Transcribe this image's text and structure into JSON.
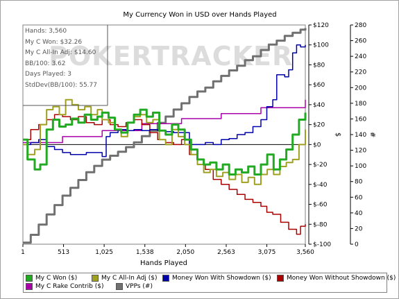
{
  "chart_data": {
    "type": "line",
    "title": "My Currency Won in USD over Hands Played",
    "xlabel": "Hands Played",
    "ylabel_left": "$",
    "ylabel_right": "#",
    "xlim": [
      1,
      3560
    ],
    "ylim_left": [
      -100,
      120
    ],
    "ylim_right": [
      0,
      280
    ],
    "x_ticks": [
      {
        "v": 1,
        "label": "1"
      },
      {
        "v": 513,
        "label": "513"
      },
      {
        "v": 1025,
        "label": "1,025"
      },
      {
        "v": 1538,
        "label": "1,538"
      },
      {
        "v": 2050,
        "label": "2,050"
      },
      {
        "v": 2563,
        "label": "2,563"
      },
      {
        "v": 3075,
        "label": "3,075"
      },
      {
        "v": 3560,
        "label": "3,560"
      }
    ],
    "y_ticks_left": [
      {
        "v": 120,
        "label": "$120"
      },
      {
        "v": 100,
        "label": "$100"
      },
      {
        "v": 80,
        "label": "$80"
      },
      {
        "v": 60,
        "label": "$60"
      },
      {
        "v": 40,
        "label": "$40"
      },
      {
        "v": 20,
        "label": "$20"
      },
      {
        "v": 0,
        "label": "$0"
      },
      {
        "v": -20,
        "label": "$-20"
      },
      {
        "v": -40,
        "label": "$-40"
      },
      {
        "v": -60,
        "label": "$-60"
      },
      {
        "v": -80,
        "label": "$-80"
      },
      {
        "v": -100,
        "label": "$-100"
      }
    ],
    "y_ticks_right": [
      {
        "v": 280,
        "label": "280"
      },
      {
        "v": 260,
        "label": "260"
      },
      {
        "v": 240,
        "label": "240"
      },
      {
        "v": 220,
        "label": "220"
      },
      {
        "v": 200,
        "label": "200"
      },
      {
        "v": 180,
        "label": "180"
      },
      {
        "v": 160,
        "label": "160"
      },
      {
        "v": 140,
        "label": "140"
      },
      {
        "v": 120,
        "label": "120"
      },
      {
        "v": 100,
        "label": "100"
      },
      {
        "v": 80,
        "label": "80"
      },
      {
        "v": 60,
        "label": "60"
      },
      {
        "v": 40,
        "label": "40"
      },
      {
        "v": 20,
        "label": "20"
      },
      {
        "v": 0,
        "label": "0"
      }
    ],
    "series": [
      {
        "name": "My C Won ($)",
        "color": "#22aa22",
        "axis": "left",
        "width": 3,
        "x": [
          1,
          60,
          150,
          220,
          300,
          380,
          460,
          540,
          620,
          700,
          780,
          860,
          940,
          1000,
          1080,
          1160,
          1240,
          1320,
          1400,
          1480,
          1560,
          1640,
          1720,
          1800,
          1880,
          1960,
          2040,
          2120,
          2200,
          2280,
          2360,
          2440,
          2520,
          2600,
          2680,
          2760,
          2840,
          2920,
          3000,
          3080,
          3160,
          3240,
          3320,
          3400,
          3480,
          3560
        ],
        "y": [
          5,
          -15,
          -25,
          -20,
          15,
          25,
          18,
          20,
          26,
          22,
          30,
          25,
          28,
          32,
          27,
          15,
          12,
          22,
          30,
          35,
          28,
          32,
          14,
          10,
          20,
          15,
          5,
          -5,
          -15,
          -20,
          -18,
          -25,
          -20,
          -30,
          -25,
          -28,
          -22,
          -30,
          -20,
          -10,
          -25,
          -15,
          -5,
          10,
          25,
          32
        ]
      },
      {
        "name": "My C All-In Adj ($)",
        "color": "#a0a020",
        "axis": "left",
        "width": 2,
        "x": [
          1,
          60,
          150,
          220,
          300,
          380,
          460,
          540,
          620,
          700,
          780,
          860,
          940,
          1000,
          1080,
          1160,
          1240,
          1320,
          1400,
          1480,
          1560,
          1640,
          1720,
          1800,
          1880,
          1960,
          2040,
          2120,
          2200,
          2280,
          2360,
          2440,
          2520,
          2600,
          2680,
          2760,
          2840,
          2920,
          3000,
          3080,
          3160,
          3240,
          3320,
          3400,
          3480,
          3560
        ],
        "y": [
          0,
          -10,
          -5,
          20,
          35,
          38,
          30,
          45,
          40,
          35,
          38,
          30,
          35,
          25,
          22,
          15,
          8,
          22,
          28,
          30,
          22,
          25,
          5,
          0,
          15,
          8,
          0,
          -10,
          -20,
          -28,
          -25,
          -32,
          -28,
          -35,
          -30,
          -38,
          -33,
          -40,
          -30,
          -25,
          -30,
          -22,
          -18,
          -15,
          0,
          15
        ]
      },
      {
        "name": "Money Won With Showdown ($)",
        "color": "#0000aa",
        "axis": "left",
        "width": 1.5,
        "x": [
          1,
          100,
          200,
          300,
          400,
          500,
          600,
          700,
          800,
          900,
          1000,
          1050,
          1100,
          1200,
          1300,
          1400,
          1500,
          1600,
          1700,
          1800,
          1900,
          2000,
          2100,
          2200,
          2300,
          2400,
          2500,
          2600,
          2700,
          2800,
          2900,
          3000,
          3075,
          3150,
          3200,
          3300,
          3350,
          3400,
          3450,
          3500,
          3560
        ],
        "y": [
          0,
          2,
          5,
          -2,
          -5,
          -8,
          -10,
          -10,
          -8,
          -8,
          -12,
          8,
          12,
          15,
          14,
          15,
          14,
          15,
          14,
          13,
          12,
          12,
          0,
          0,
          2,
          0,
          5,
          6,
          10,
          12,
          18,
          25,
          38,
          45,
          70,
          68,
          75,
          92,
          100,
          98,
          100
        ]
      },
      {
        "name": "Money Won Without Showdown ($)",
        "color": "#aa0000",
        "axis": "left",
        "width": 1.5,
        "x": [
          1,
          100,
          200,
          300,
          400,
          500,
          600,
          700,
          800,
          900,
          1000,
          1100,
          1200,
          1300,
          1400,
          1500,
          1600,
          1700,
          1800,
          1900,
          2000,
          2100,
          2200,
          2300,
          2400,
          2500,
          2600,
          2700,
          2800,
          2900,
          3000,
          3075,
          3150,
          3250,
          3350,
          3450,
          3500,
          3560
        ],
        "y": [
          5,
          15,
          20,
          25,
          30,
          28,
          25,
          28,
          22,
          20,
          25,
          20,
          18,
          22,
          25,
          20,
          12,
          5,
          2,
          0,
          5,
          -10,
          -20,
          -25,
          -35,
          -40,
          -45,
          -50,
          -55,
          -58,
          -62,
          -68,
          -70,
          -78,
          -85,
          -90,
          -82,
          -80
        ]
      },
      {
        "name": "My C Rake Contrib ($)",
        "color": "#aa00aa",
        "axis": "left",
        "width": 1.5,
        "x": [
          1,
          500,
          1000,
          1500,
          2000,
          2500,
          3000,
          3560
        ],
        "y": [
          2,
          8,
          14,
          21,
          26,
          31,
          37,
          45
        ]
      },
      {
        "name": "VPPs (#)",
        "color": "#707070",
        "axis": "right",
        "width": 3,
        "x": [
          1,
          100,
          200,
          300,
          400,
          500,
          600,
          700,
          800,
          900,
          1000,
          1100,
          1200,
          1300,
          1400,
          1500,
          1600,
          1700,
          1800,
          1900,
          2000,
          2100,
          2200,
          2300,
          2400,
          2500,
          2600,
          2700,
          2800,
          2900,
          3000,
          3100,
          3200,
          3300,
          3400,
          3500,
          3560
        ],
        "y": [
          2,
          12,
          25,
          38,
          50,
          62,
          72,
          82,
          92,
          100,
          108,
          113,
          118,
          124,
          130,
          138,
          145,
          155,
          163,
          172,
          180,
          188,
          195,
          200,
          208,
          215,
          222,
          228,
          235,
          240,
          248,
          255,
          260,
          266,
          270,
          274,
          276
        ]
      }
    ]
  },
  "info": {
    "hands": "Hands: 3,560",
    "won": "My C Won: $32.26",
    "allin": "My C All-In Adj: $14.60",
    "bb100": "BB/100: 3.62",
    "days": "Days Played: 3",
    "stddev": "StdDev(BB/100): 55.77"
  },
  "watermark": "POKERTRACKER"
}
